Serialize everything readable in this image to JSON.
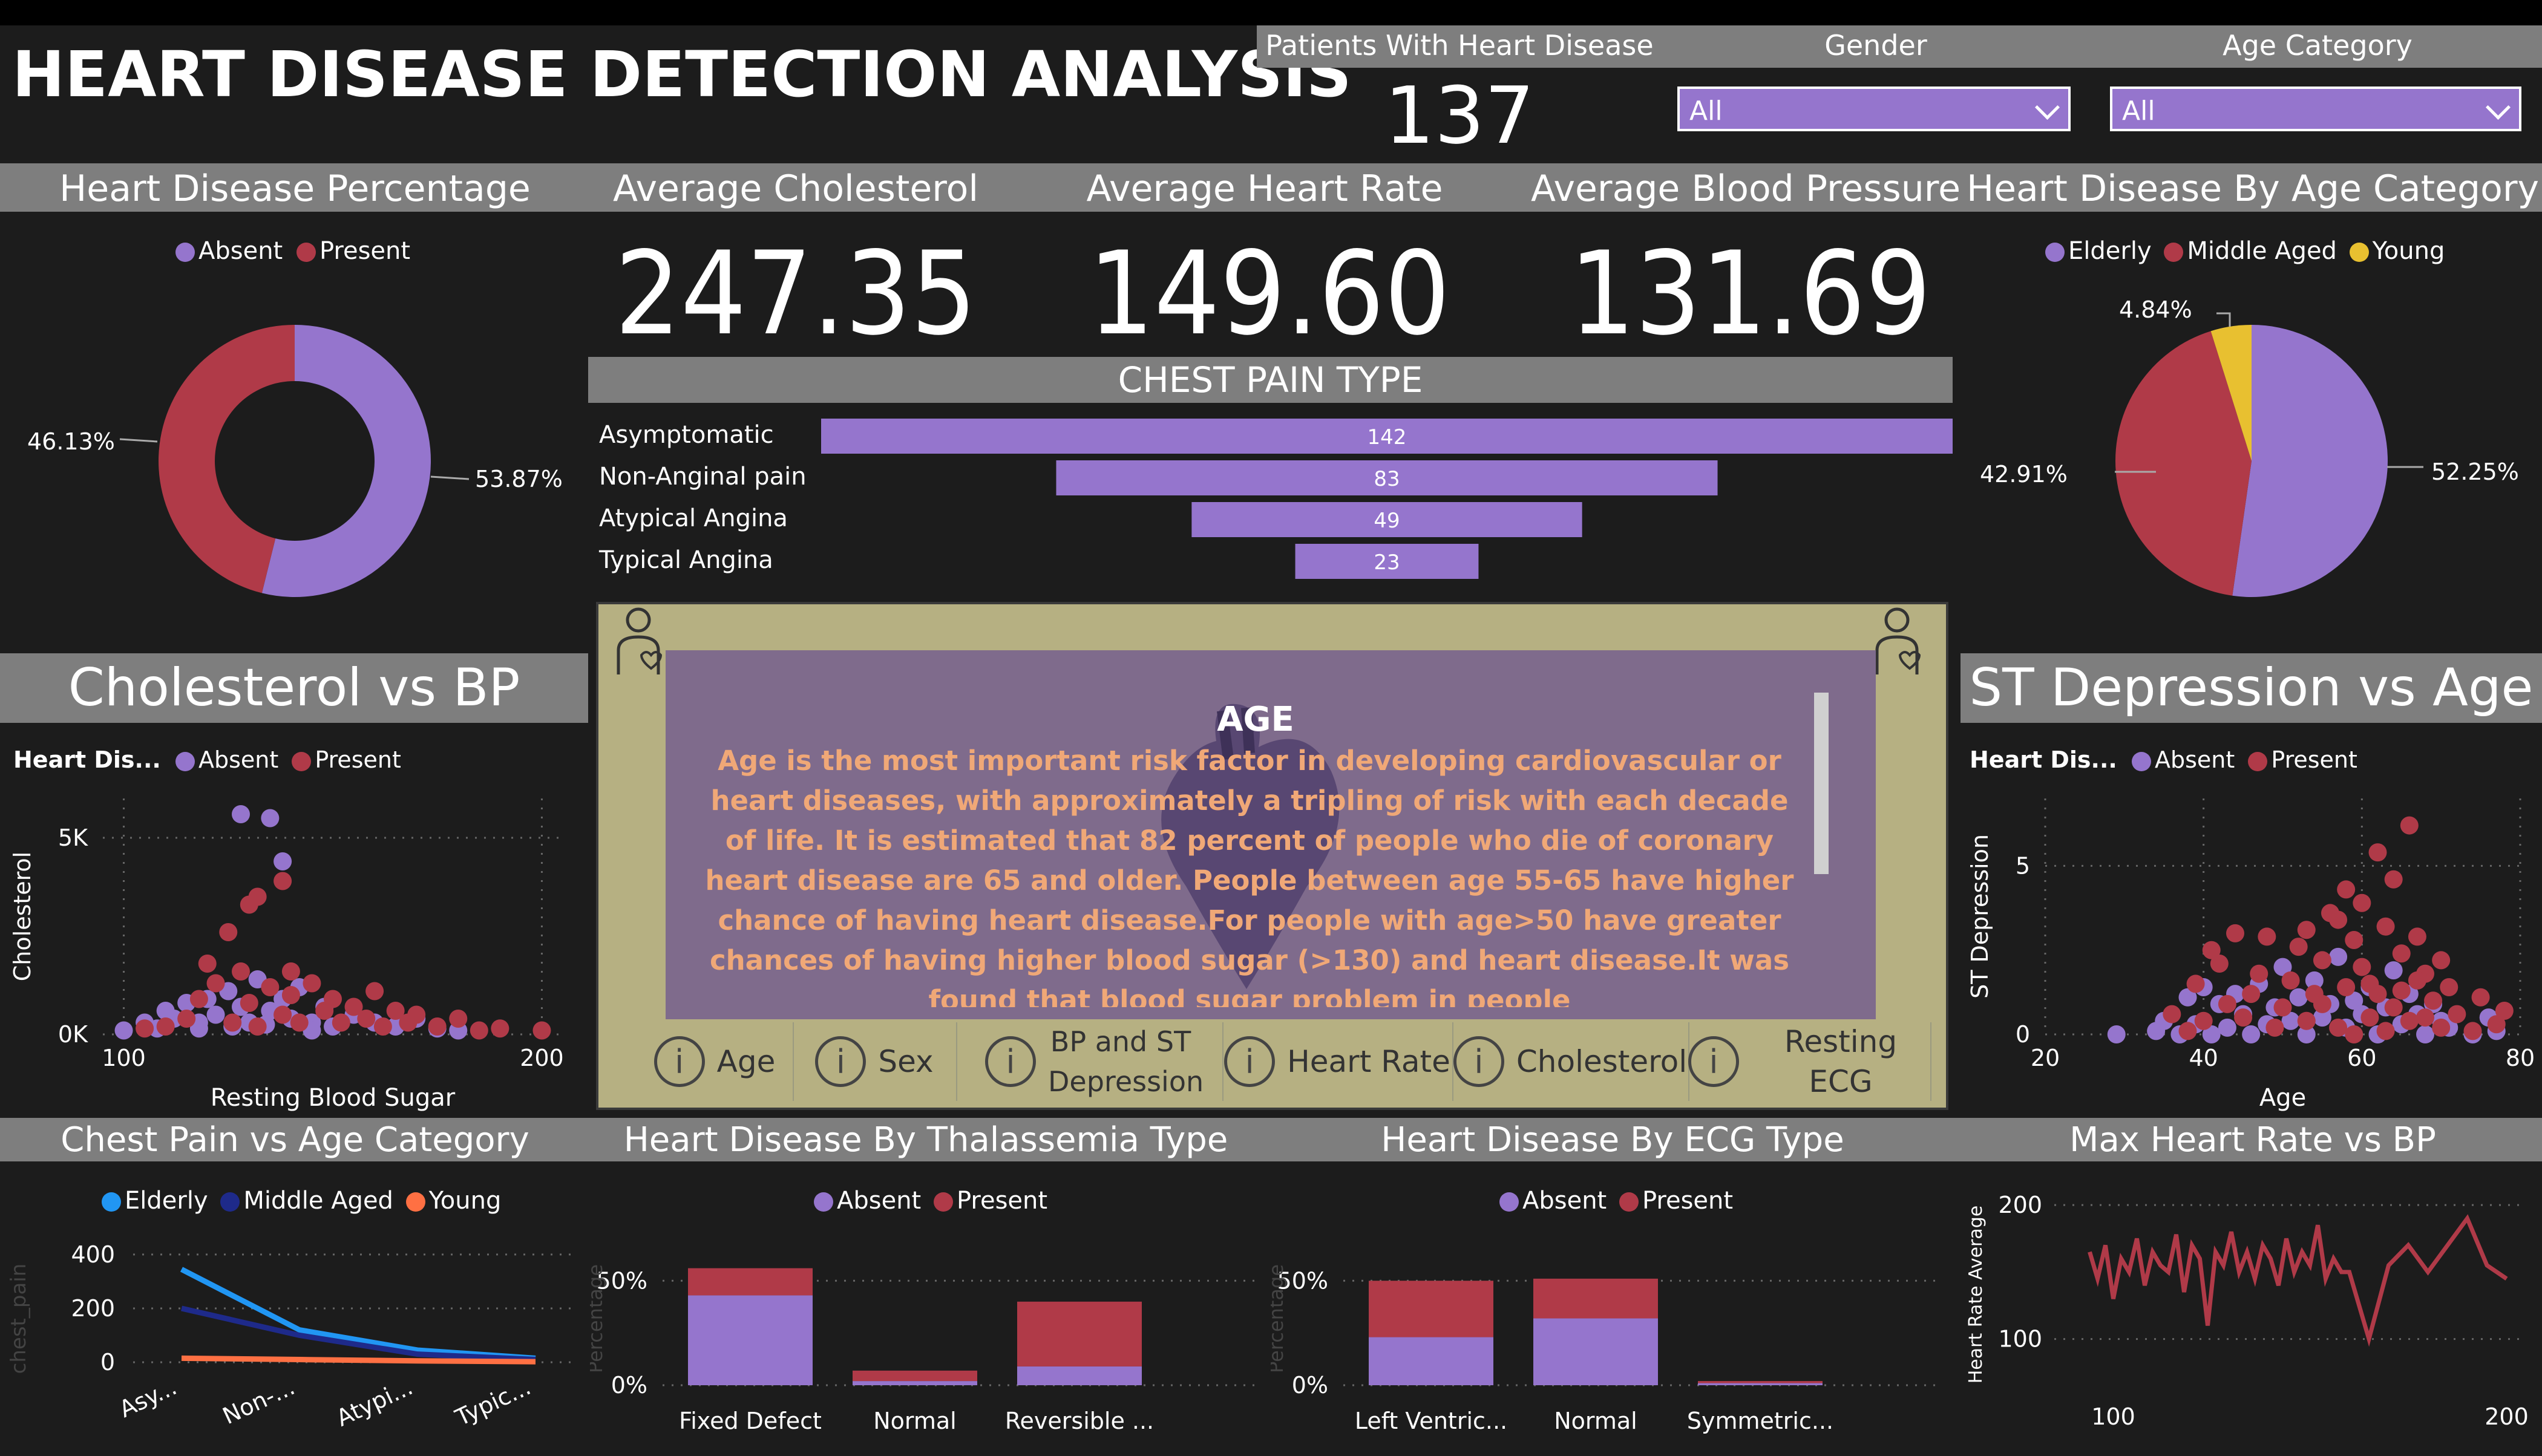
{
  "header": {
    "title": "HEART DISEASE DETECTION ANALYSIS"
  },
  "kpi_patients": {
    "label": "Patients With Heart Disease",
    "value": "137"
  },
  "filters": {
    "gender_label": "Gender",
    "gender_value": "All",
    "age_label": "Age Category",
    "age_value": "All"
  },
  "kpis": {
    "cholesterol": {
      "label": "Average Cholesterol",
      "value": "247.35"
    },
    "heart_rate": {
      "label": "Average Heart Rate",
      "value": "149.60"
    },
    "bp": {
      "label": "Average Blood Pressure",
      "value": "131.69"
    }
  },
  "info_panel": {
    "title": "AGE",
    "text": "Age is the most important risk factor in developing cardiovascular or heart diseases, with approximately a tripling of risk with each decade of life. It is estimated that 82 percent of people who die of coronary heart disease are 65 and older. People between age 55-65 have higher chance of having heart disease.For people with age>50 have greater chances of having higher blood sugar (>130) and heart disease.It was found that blood sugar problem in people",
    "tabs": [
      "Age",
      "Sex",
      "BP and ST Depression",
      "Heart Rate",
      "Cholesterol",
      "Resting ECG"
    ],
    "tab_icon": "i"
  },
  "colors": {
    "absent": "#9575cd",
    "present": "#b03a48",
    "elderly": "#2196f3",
    "middle": "#1e2a8a",
    "young": "#ff7043",
    "young_pie": "#e8c030"
  },
  "icons": {
    "doctor_left": "doctor-icon",
    "doctor_right": "doctor-icon",
    "heart": "heart-icon"
  },
  "chart_data": [
    {
      "id": "hd_pct",
      "type": "pie",
      "title": "Heart Disease Percentage",
      "legend": [
        "Absent",
        "Present"
      ],
      "categories": [
        "Absent",
        "Present"
      ],
      "values": [
        53.87,
        46.13
      ],
      "labels": [
        "53.87%",
        "46.13%"
      ]
    },
    {
      "id": "chest_pain",
      "type": "bar",
      "title": "CHEST PAIN TYPE",
      "categories": [
        "Asymptomatic",
        "Non-Anginal pain",
        "Atypical Angina",
        "Typical Angina"
      ],
      "values": [
        142,
        83,
        49,
        23
      ]
    },
    {
      "id": "hd_age",
      "type": "pie",
      "title": "Heart Disease By Age Category",
      "legend": [
        "Elderly",
        "Middle Aged",
        "Young"
      ],
      "categories": [
        "Elderly",
        "Middle Aged",
        "Young"
      ],
      "values": [
        52.25,
        42.91,
        4.84
      ],
      "labels": [
        "52.25%",
        "42.91%",
        "4.84%"
      ]
    },
    {
      "id": "chol_bp",
      "type": "scatter",
      "title": "Cholesterol vs BP",
      "legend_title": "Heart Dis...",
      "legend": [
        "Absent",
        "Present"
      ],
      "xlabel": "Resting Blood Sugar",
      "ylabel": "Cholesterol",
      "xticks": [
        "100",
        "200"
      ],
      "yticks": [
        "0K",
        "5K"
      ],
      "xlim": [
        95,
        205
      ],
      "ylim": [
        0,
        6000
      ],
      "series": [
        {
          "name": "Absent",
          "points": [
            [
              128,
              5600
            ],
            [
              135,
              5500
            ],
            [
              138,
              4400
            ],
            [
              100,
              100
            ],
            [
              105,
              300
            ],
            [
              110,
              600
            ],
            [
              112,
              400
            ],
            [
              115,
              800
            ],
            [
              118,
              300
            ],
            [
              120,
              900
            ],
            [
              122,
              500
            ],
            [
              125,
              1100
            ],
            [
              128,
              700
            ],
            [
              130,
              300
            ],
            [
              132,
              1400
            ],
            [
              135,
              600
            ],
            [
              138,
              900
            ],
            [
              140,
              400
            ],
            [
              142,
              1200
            ],
            [
              145,
              300
            ],
            [
              148,
              700
            ],
            [
              150,
              200
            ],
            [
              155,
              500
            ],
            [
              160,
              300
            ],
            [
              165,
              200
            ],
            [
              170,
              400
            ],
            [
              175,
              150
            ],
            [
              180,
              100
            ],
            [
              108,
              150
            ],
            [
              118,
              150
            ],
            [
              126,
              200
            ],
            [
              134,
              250
            ],
            [
              145,
              100
            ]
          ]
        },
        {
          "name": "Present",
          "points": [
            [
              132,
              3500
            ],
            [
              138,
              3900
            ],
            [
              125,
              2600
            ],
            [
              130,
              3300
            ],
            [
              120,
              1800
            ],
            [
              140,
              1600
            ],
            [
              115,
              400
            ],
            [
              118,
              900
            ],
            [
              122,
              1300
            ],
            [
              126,
              300
            ],
            [
              128,
              1600
            ],
            [
              130,
              800
            ],
            [
              132,
              200
            ],
            [
              135,
              1200
            ],
            [
              138,
              500
            ],
            [
              140,
              1000
            ],
            [
              142,
              300
            ],
            [
              145,
              1300
            ],
            [
              148,
              600
            ],
            [
              150,
              900
            ],
            [
              152,
              300
            ],
            [
              155,
              700
            ],
            [
              158,
              400
            ],
            [
              160,
              1100
            ],
            [
              162,
              200
            ],
            [
              165,
              600
            ],
            [
              168,
              300
            ],
            [
              170,
              500
            ],
            [
              175,
              200
            ],
            [
              180,
              400
            ],
            [
              185,
              100
            ],
            [
              190,
              150
            ],
            [
              200,
              100
            ],
            [
              110,
              200
            ],
            [
              105,
              150
            ]
          ]
        }
      ]
    },
    {
      "id": "st_age",
      "type": "scatter",
      "title": "ST Depression vs Age",
      "legend_title": "Heart Dis...",
      "legend": [
        "Absent",
        "Present"
      ],
      "xlabel": "Age",
      "ylabel": "ST Depression",
      "xticks": [
        "20",
        "40",
        "60",
        "80"
      ],
      "yticks": [
        "0",
        "5"
      ],
      "xlim": [
        20,
        80
      ],
      "ylim": [
        0,
        7
      ],
      "series": [
        {
          "name": "Absent",
          "points": [
            [
              29,
              0
            ],
            [
              34,
              0.1
            ],
            [
              35,
              0.4
            ],
            [
              37,
              0
            ],
            [
              38,
              1.1
            ],
            [
              39,
              0.3
            ],
            [
              40,
              1.4
            ],
            [
              41,
              0
            ],
            [
              42,
              0.9
            ],
            [
              43,
              0.2
            ],
            [
              44,
              1.2
            ],
            [
              45,
              0.6
            ],
            [
              46,
              0
            ],
            [
              47,
              1.5
            ],
            [
              48,
              0.3
            ],
            [
              49,
              0.8
            ],
            [
              50,
              2.0
            ],
            [
              51,
              0.4
            ],
            [
              52,
              1.1
            ],
            [
              53,
              0
            ],
            [
              54,
              1.6
            ],
            [
              55,
              0.5
            ],
            [
              56,
              0.9
            ],
            [
              57,
              2.3
            ],
            [
              58,
              0.2
            ],
            [
              59,
              1.0
            ],
            [
              60,
              0.6
            ],
            [
              61,
              1.4
            ],
            [
              62,
              0
            ],
            [
              63,
              0.8
            ],
            [
              64,
              1.9
            ],
            [
              65,
              0.3
            ],
            [
              66,
              1.2
            ],
            [
              67,
              0.6
            ],
            [
              68,
              0
            ],
            [
              69,
              0.9
            ],
            [
              70,
              0.4
            ],
            [
              71,
              0.2
            ],
            [
              74,
              0
            ],
            [
              76,
              0.5
            ],
            [
              77,
              0.1
            ]
          ]
        },
        {
          "name": "Present",
          "points": [
            [
              66,
              6.2
            ],
            [
              62,
              5.4
            ],
            [
              64,
              4.6
            ],
            [
              58,
              4.3
            ],
            [
              56,
              3.6
            ],
            [
              60,
              3.9
            ],
            [
              53,
              3.1
            ],
            [
              57,
              3.4
            ],
            [
              48,
              2.9
            ],
            [
              44,
              3.0
            ],
            [
              41,
              2.5
            ],
            [
              52,
              2.6
            ],
            [
              55,
              2.2
            ],
            [
              59,
              2.8
            ],
            [
              63,
              3.2
            ],
            [
              65,
              2.4
            ],
            [
              67,
              2.9
            ],
            [
              68,
              1.8
            ],
            [
              70,
              2.2
            ],
            [
              61,
              1.5
            ],
            [
              54,
              1.2
            ],
            [
              50,
              0.8
            ],
            [
              47,
              1.8
            ],
            [
              45,
              0.5
            ],
            [
              43,
              0.9
            ],
            [
              39,
              1.5
            ],
            [
              38,
              0.1
            ],
            [
              36,
              0.6
            ],
            [
              40,
              0.4
            ],
            [
              42,
              2.1
            ],
            [
              46,
              1.2
            ],
            [
              49,
              0.2
            ],
            [
              51,
              1.6
            ],
            [
              53,
              0.4
            ],
            [
              55,
              0.9
            ],
            [
              57,
              0.2
            ],
            [
              58,
              1.4
            ],
            [
              59,
              0
            ],
            [
              60,
              2.0
            ],
            [
              61,
              0.5
            ],
            [
              62,
              1.2
            ],
            [
              63,
              0.1
            ],
            [
              64,
              0.8
            ],
            [
              65,
              1.3
            ],
            [
              66,
              0.4
            ],
            [
              67,
              1.6
            ],
            [
              68,
              0.5
            ],
            [
              69,
              1.0
            ],
            [
              70,
              0.2
            ],
            [
              71,
              1.4
            ],
            [
              72,
              0.6
            ],
            [
              74,
              0.1
            ],
            [
              75,
              1.1
            ],
            [
              77,
              0.3
            ],
            [
              78,
              0.7
            ]
          ]
        }
      ]
    },
    {
      "id": "cp_age",
      "type": "line",
      "title": "Chest Pain vs Age Category",
      "legend": [
        "Elderly",
        "Middle Aged",
        "Young"
      ],
      "categories": [
        "Asy...",
        "Non-...",
        "Atypi...",
        "Typic..."
      ],
      "ylabel": "chest_pain",
      "yticks": [
        "0",
        "200",
        "400"
      ],
      "ylim": [
        0,
        420
      ],
      "series": [
        {
          "name": "Elderly",
          "values": [
            345,
            120,
            45,
            15
          ]
        },
        {
          "name": "Middle Aged",
          "values": [
            200,
            100,
            30,
            10
          ]
        },
        {
          "name": "Young",
          "values": [
            15,
            10,
            5,
            2
          ]
        }
      ]
    },
    {
      "id": "thal",
      "type": "bar",
      "stacked": true,
      "title": "Heart Disease By Thalassemia Type",
      "legend": [
        "Absent",
        "Present"
      ],
      "categories": [
        "Fixed Defect",
        "Normal",
        "Reversible ..."
      ],
      "ylabel": "Percentage",
      "yticks": [
        "0%",
        "50%"
      ],
      "ylim": [
        0,
        55
      ],
      "series": [
        {
          "name": "Absent",
          "values": [
            43,
            2,
            9
          ]
        },
        {
          "name": "Present",
          "values": [
            13,
            5,
            31
          ]
        }
      ]
    },
    {
      "id": "ecg",
      "type": "bar",
      "stacked": true,
      "title": "Heart Disease By ECG Type",
      "legend": [
        "Absent",
        "Present"
      ],
      "categories": [
        "Left Ventric...",
        "Normal",
        "Symmetric..."
      ],
      "ylabel": "Percentage",
      "yticks": [
        "0%",
        "50%"
      ],
      "ylim": [
        0,
        55
      ],
      "series": [
        {
          "name": "Absent",
          "values": [
            23,
            32,
            1
          ]
        },
        {
          "name": "Present",
          "values": [
            27,
            19,
            1
          ]
        }
      ]
    },
    {
      "id": "hr_bp",
      "type": "line",
      "title": "Max Heart Rate vs BP",
      "ylabel": "Heart Rate Average",
      "xticks": [
        "100",
        "200"
      ],
      "yticks": [
        "100",
        "200"
      ],
      "xlim": [
        85,
        205
      ],
      "ylim": [
        70,
        210
      ],
      "series": [
        {
          "name": "Heart Rate Average",
          "x": [
            94,
            96,
            98,
            100,
            102,
            104,
            106,
            108,
            110,
            112,
            114,
            116,
            118,
            120,
            122,
            124,
            126,
            128,
            130,
            132,
            134,
            136,
            138,
            140,
            142,
            144,
            146,
            148,
            150,
            152,
            154,
            156,
            158,
            160,
            165,
            170,
            175,
            180,
            185,
            190,
            195,
            200
          ],
          "values": [
            165,
            145,
            170,
            130,
            160,
            150,
            175,
            140,
            165,
            155,
            150,
            178,
            135,
            170,
            160,
            110,
            165,
            155,
            180,
            150,
            165,
            145,
            170,
            160,
            140,
            175,
            150,
            165,
            155,
            185,
            145,
            160,
            150,
            150,
            100,
            155,
            170,
            150,
            170,
            190,
            155,
            145
          ]
        }
      ]
    }
  ]
}
